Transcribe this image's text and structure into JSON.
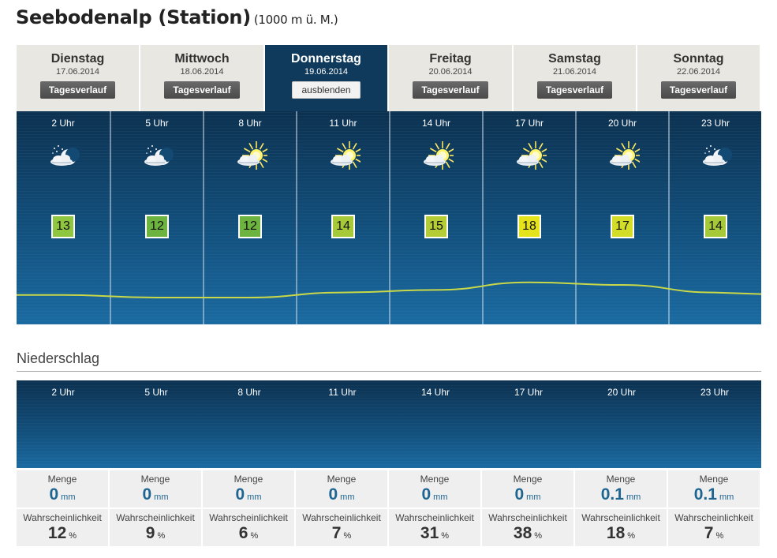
{
  "header": {
    "title": "Seebodenalp (Station)",
    "subtitle": "(1000 m ü. M.)"
  },
  "days": [
    {
      "name": "Dienstag",
      "date": "17.06.2014",
      "button": "Tagesverlauf",
      "active": false
    },
    {
      "name": "Mittwoch",
      "date": "18.06.2014",
      "button": "Tagesverlauf",
      "active": false
    },
    {
      "name": "Donnerstag",
      "date": "19.06.2014",
      "button": "ausblenden",
      "active": true
    },
    {
      "name": "Freitag",
      "date": "20.06.2014",
      "button": "Tagesverlauf",
      "active": false
    },
    {
      "name": "Samstag",
      "date": "21.06.2014",
      "button": "Tagesverlauf",
      "active": false
    },
    {
      "name": "Sonntag",
      "date": "22.06.2014",
      "button": "Tagesverlauf",
      "active": false
    }
  ],
  "hours": [
    {
      "label": "2 Uhr",
      "icon": "night-moon-cloud-icon",
      "temp": "13",
      "temp_color": "#8ec63f"
    },
    {
      "label": "5 Uhr",
      "icon": "night-moon-cloud-icon",
      "temp": "12",
      "temp_color": "#6db33f"
    },
    {
      "label": "8 Uhr",
      "icon": "sun-cloud-icon",
      "temp": "12",
      "temp_color": "#6db33f"
    },
    {
      "label": "11 Uhr",
      "icon": "sun-cloud-icon",
      "temp": "14",
      "temp_color": "#a6c93a"
    },
    {
      "label": "14 Uhr",
      "icon": "sun-cloud-icon",
      "temp": "15",
      "temp_color": "#b4cc35"
    },
    {
      "label": "17 Uhr",
      "icon": "sun-cloud-icon",
      "temp": "18",
      "temp_color": "#e5e31b"
    },
    {
      "label": "20 Uhr",
      "icon": "sun-cloud-icon",
      "temp": "17",
      "temp_color": "#d3dc27"
    },
    {
      "label": "23 Uhr",
      "icon": "night-moon-cloud-icon",
      "temp": "14",
      "temp_color": "#a6c93a"
    }
  ],
  "precipitation": {
    "heading": "Niederschlag",
    "menge_label": "Menge",
    "menge_unit": "mm",
    "wahr_label": "Wahrscheinlichkeit",
    "wahr_unit": "%",
    "items": [
      {
        "label": "2 Uhr",
        "menge": "0",
        "wahr": "12"
      },
      {
        "label": "5 Uhr",
        "menge": "0",
        "wahr": "9"
      },
      {
        "label": "8 Uhr",
        "menge": "0",
        "wahr": "6"
      },
      {
        "label": "11 Uhr",
        "menge": "0",
        "wahr": "7"
      },
      {
        "label": "14 Uhr",
        "menge": "0",
        "wahr": "31"
      },
      {
        "label": "17 Uhr",
        "menge": "0",
        "wahr": "38"
      },
      {
        "label": "20 Uhr",
        "menge": "0.1",
        "wahr": "18"
      },
      {
        "label": "23 Uhr",
        "menge": "0.1",
        "wahr": "7"
      }
    ]
  },
  "colors": {
    "panel_dark": "#0c3150",
    "panel_light": "#1a6aa1",
    "temp_line": "#c8d848",
    "active_tab": "#0f3a5b",
    "menge_value": "#1e6592"
  }
}
